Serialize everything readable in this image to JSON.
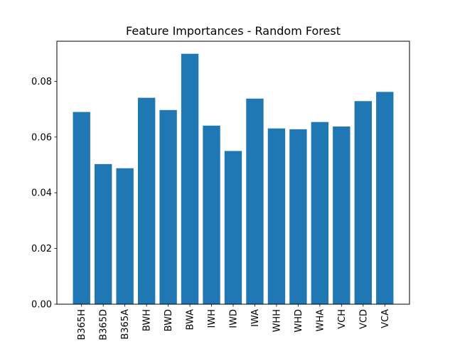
{
  "chart_data": {
    "type": "bar",
    "title": "Feature Importances - Random Forest",
    "xlabel": "",
    "ylabel": "",
    "categories": [
      "B365H",
      "B365D",
      "B365A",
      "BWH",
      "BWD",
      "BWA",
      "IWH",
      "IWD",
      "IWA",
      "WHH",
      "WHD",
      "WHA",
      "VCH",
      "VCD",
      "VCA"
    ],
    "values": [
      0.069,
      0.0503,
      0.0488,
      0.0741,
      0.0697,
      0.0899,
      0.0641,
      0.055,
      0.0738,
      0.0631,
      0.0628,
      0.0654,
      0.0638,
      0.0729,
      0.0762
    ],
    "ylim": [
      0,
      0.0944
    ],
    "yticks": [
      0.0,
      0.02,
      0.04,
      0.06,
      0.08
    ],
    "ytick_labels": [
      "0.00",
      "0.02",
      "0.04",
      "0.06",
      "0.08"
    ],
    "bar_color": "#1f77b4",
    "grid": false,
    "legend": "none"
  }
}
